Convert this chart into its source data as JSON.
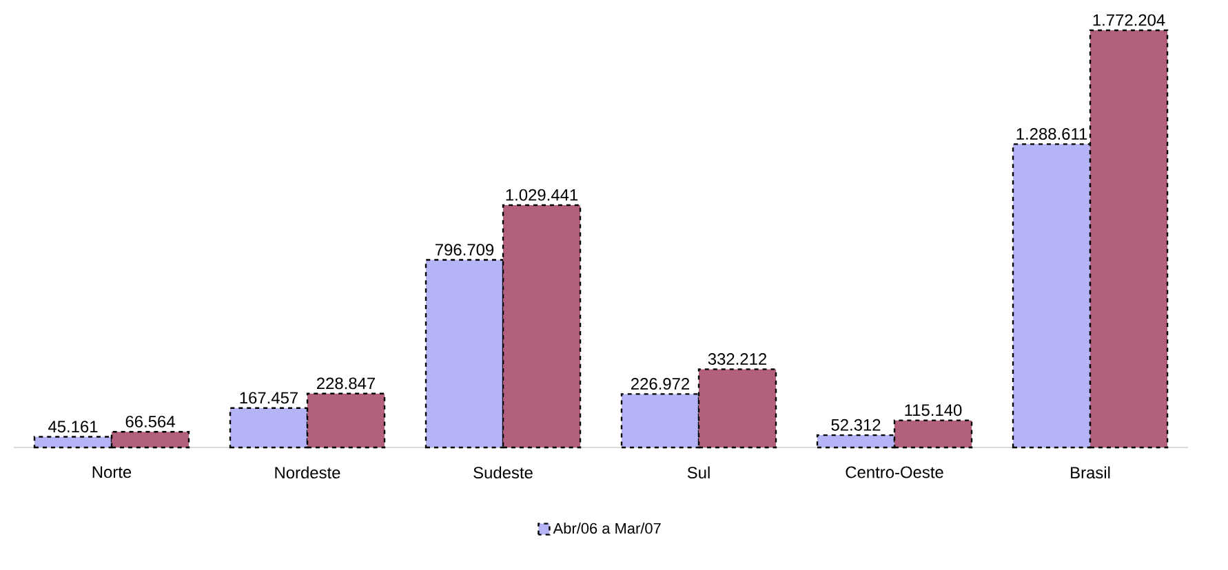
{
  "chart_data": {
    "type": "bar",
    "categories": [
      "Norte",
      "Nordeste",
      "Sudeste",
      "Sul",
      "Centro-Oeste",
      "Brasil"
    ],
    "series": [
      {
        "name": "Abr/06 a Mar/07",
        "color": "#b4b4f6",
        "values": [
          45161,
          167457,
          796709,
          226972,
          52312,
          1288611
        ],
        "value_labels": [
          "45.161",
          "167.457",
          "796.709",
          "226.972",
          "52.312",
          "1.288.611"
        ]
      },
      {
        "color": "#b2607e",
        "values": [
          66564,
          228847,
          1029441,
          332212,
          115140,
          1772204
        ],
        "value_labels": [
          "66.564",
          "228.847",
          "1.029.441",
          "332.212",
          "115.140",
          "1.772.204"
        ]
      }
    ],
    "legend": "bottom",
    "line_style": "dashed"
  }
}
